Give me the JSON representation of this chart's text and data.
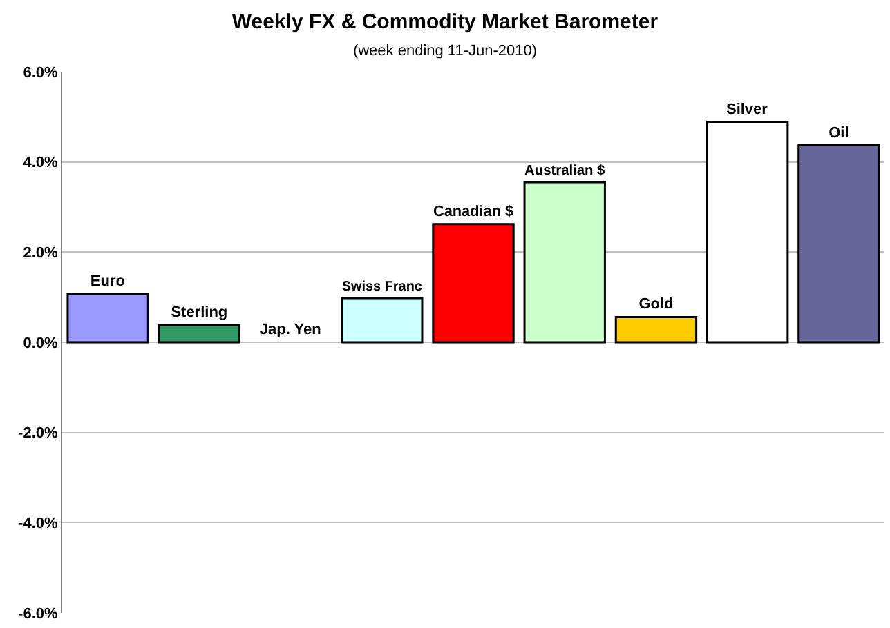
{
  "chart_data": {
    "type": "bar",
    "title": "Weekly FX & Commodity Market Barometer",
    "subtitle": "(week ending 11-Jun-2010)",
    "categories": [
      "Euro",
      "Sterling",
      "Jap. Yen",
      "Swiss Franc",
      "Canadian $",
      "Australian $",
      "Gold",
      "Silver",
      "Oil"
    ],
    "values": [
      1.07,
      0.38,
      0,
      0.98,
      2.62,
      3.55,
      0.56,
      4.89,
      4.37
    ],
    "colors": [
      "#9999ff",
      "#339966",
      null,
      "#ccffff",
      "#ff0000",
      "#ccffcc",
      "#ffcc00",
      "#ffffff",
      "#666699"
    ],
    "ylim": [
      -6,
      6
    ],
    "yticks": [
      {
        "value": -6,
        "label": "-6.0%"
      },
      {
        "value": -4,
        "label": "-4.0%"
      },
      {
        "value": -2,
        "label": "-2.0%"
      },
      {
        "value": 0,
        "label": "0.0%"
      },
      {
        "value": 2,
        "label": "2.0%"
      },
      {
        "value": 4,
        "label": "4.0%"
      },
      {
        "value": 6,
        "label": "6.0%"
      }
    ],
    "grid": "y",
    "tick_labels": "y"
  }
}
